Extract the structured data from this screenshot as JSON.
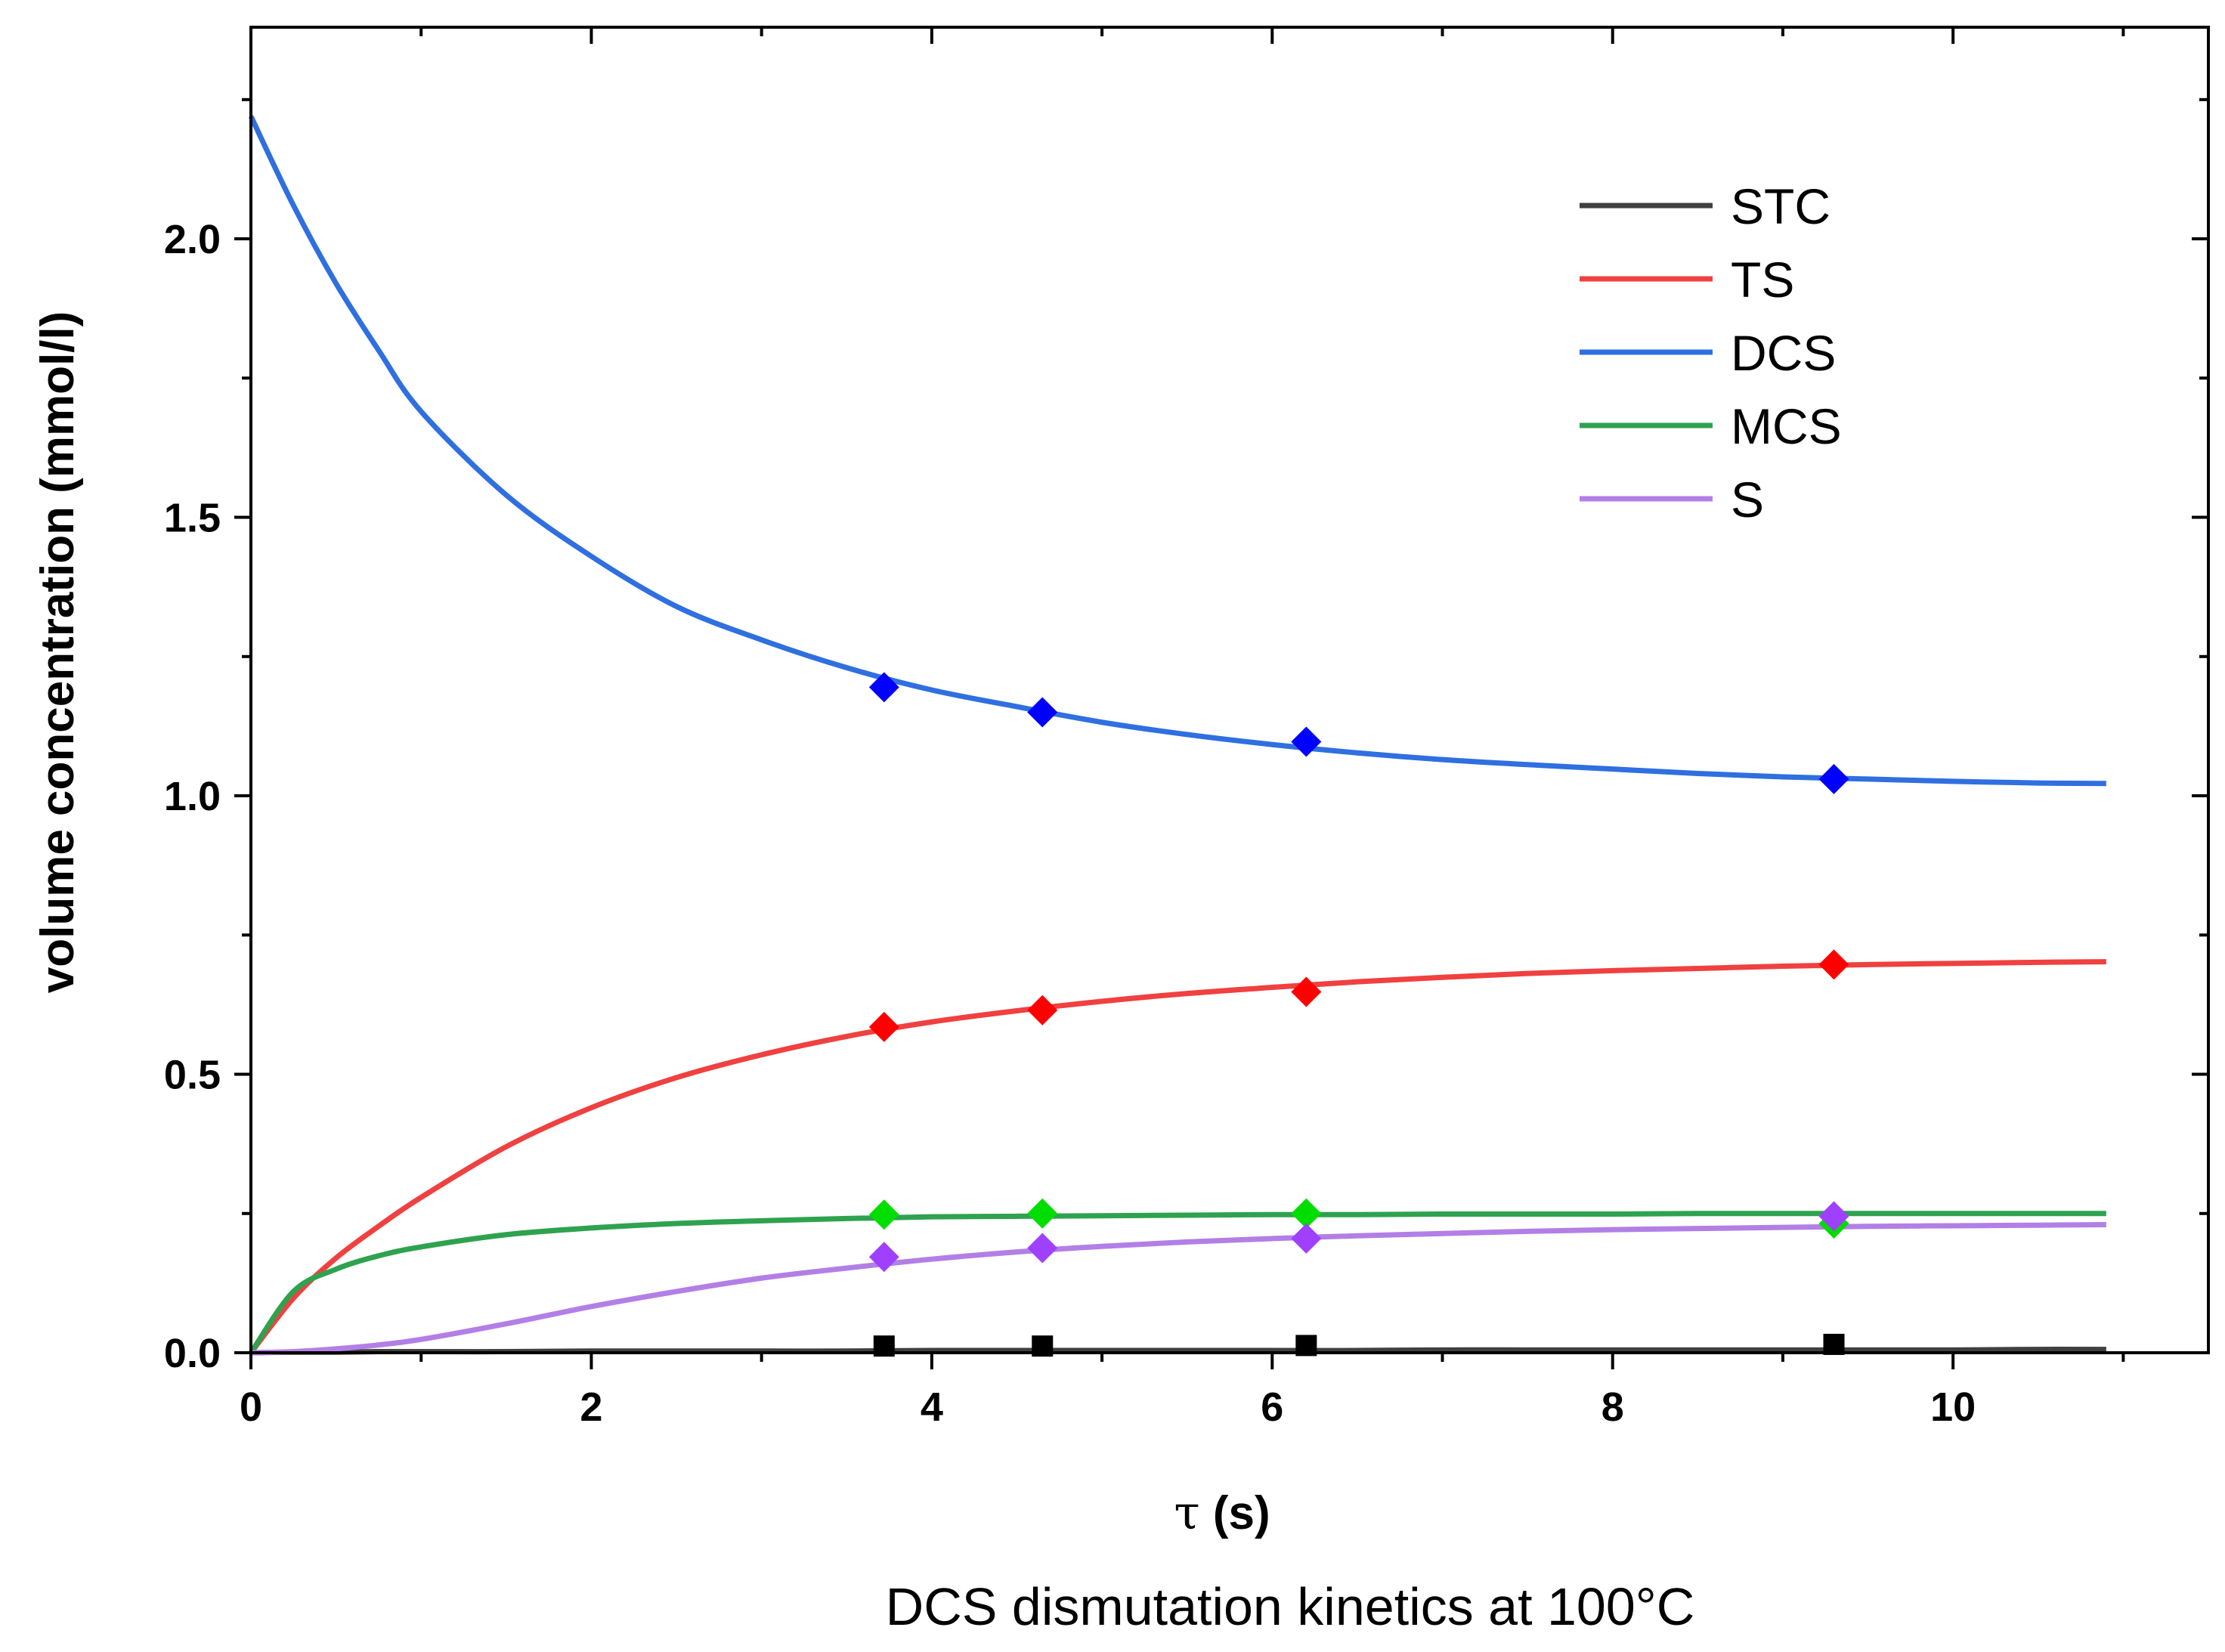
{
  "chart_data": {
    "type": "line",
    "caption": "DCS dismutation kinetics at 100°C",
    "xlabel_symbol": "τ",
    "xlabel_unit": " (s)",
    "ylabel": "volume concentration (mmol/l)",
    "xlim": [
      0,
      11.5
    ],
    "ylim": [
      0,
      2.38
    ],
    "x_ticks": [
      0,
      2,
      4,
      6,
      8,
      10
    ],
    "x_tick_labels": [
      "0",
      "2",
      "4",
      "6",
      "8",
      "10"
    ],
    "y_ticks": [
      0.0,
      0.5,
      1.0,
      1.5,
      2.0
    ],
    "y_tick_labels": [
      "0.0",
      "0.5",
      "1.0",
      "1.5",
      "2.0"
    ],
    "grid": false,
    "legend_position": "top-right",
    "curve_x": [
      0,
      0.25,
      0.5,
      0.75,
      1,
      1.5,
      2,
      2.5,
      3,
      3.5,
      4,
      4.5,
      5,
      5.5,
      6,
      6.5,
      7,
      7.5,
      8,
      8.5,
      9,
      9.5,
      10,
      10.5,
      10.9
    ],
    "series": [
      {
        "name": "STC",
        "color": "#404040",
        "marker_color": "#000000",
        "marker": "square",
        "curve_y": [
          0,
          0.001,
          0.001,
          0.002,
          0.002,
          0.002,
          0.003,
          0.003,
          0.003,
          0.003,
          0.004,
          0.004,
          0.004,
          0.004,
          0.004,
          0.004,
          0.005,
          0.005,
          0.005,
          0.005,
          0.005,
          0.005,
          0.005,
          0.006,
          0.006
        ],
        "points_x": [
          3.72,
          4.65,
          6.2,
          9.3
        ],
        "points_y": [
          0.012,
          0.012,
          0.013,
          0.015
        ]
      },
      {
        "name": "TS",
        "color": "#f04040",
        "marker_color": "#ff0000",
        "marker": "diamond",
        "curve_y": [
          0,
          0.098,
          0.17,
          0.227,
          0.279,
          0.37,
          0.44,
          0.494,
          0.535,
          0.568,
          0.594,
          0.614,
          0.631,
          0.645,
          0.656,
          0.666,
          0.674,
          0.681,
          0.686,
          0.69,
          0.694,
          0.697,
          0.699,
          0.701,
          0.702
        ],
        "points_x": [
          3.72,
          4.65,
          6.2,
          9.3
        ],
        "points_y": [
          0.585,
          0.615,
          0.648,
          0.697
        ]
      },
      {
        "name": "DCS",
        "color": "#2f6fe0",
        "marker_color": "#0000ff",
        "marker": "diamond",
        "curve_y": [
          2.22,
          2.06,
          1.92,
          1.8,
          1.69,
          1.54,
          1.43,
          1.34,
          1.28,
          1.23,
          1.19,
          1.16,
          1.132,
          1.11,
          1.092,
          1.077,
          1.065,
          1.056,
          1.048,
          1.04,
          1.034,
          1.03,
          1.026,
          1.023,
          1.022
        ],
        "points_x": [
          3.72,
          4.65,
          6.2,
          9.3
        ],
        "points_y": [
          1.195,
          1.15,
          1.097,
          1.03
        ]
      },
      {
        "name": "MCS",
        "color": "#2fa24f",
        "marker_color": "#00dd00",
        "marker": "diamond",
        "curve_y": [
          0,
          0.11,
          0.15,
          0.174,
          0.19,
          0.212,
          0.224,
          0.232,
          0.237,
          0.241,
          0.244,
          0.245,
          0.246,
          0.247,
          0.248,
          0.248,
          0.249,
          0.249,
          0.249,
          0.25,
          0.25,
          0.25,
          0.25,
          0.25,
          0.25
        ],
        "points_x": [
          3.72,
          4.65,
          6.2,
          9.3
        ],
        "points_y": [
          0.248,
          0.25,
          0.25,
          0.232
        ]
      },
      {
        "name": "S",
        "color": "#b27fe6",
        "marker_color": "#a040ff",
        "marker": "diamond",
        "curve_y": [
          0,
          0.002,
          0.007,
          0.014,
          0.024,
          0.052,
          0.083,
          0.11,
          0.134,
          0.152,
          0.168,
          0.181,
          0.191,
          0.199,
          0.205,
          0.21,
          0.214,
          0.218,
          0.221,
          0.223,
          0.225,
          0.227,
          0.228,
          0.229,
          0.23
        ],
        "points_x": [
          3.72,
          4.65,
          6.2,
          9.3
        ],
        "points_y": [
          0.172,
          0.188,
          0.205,
          0.245
        ]
      }
    ]
  }
}
